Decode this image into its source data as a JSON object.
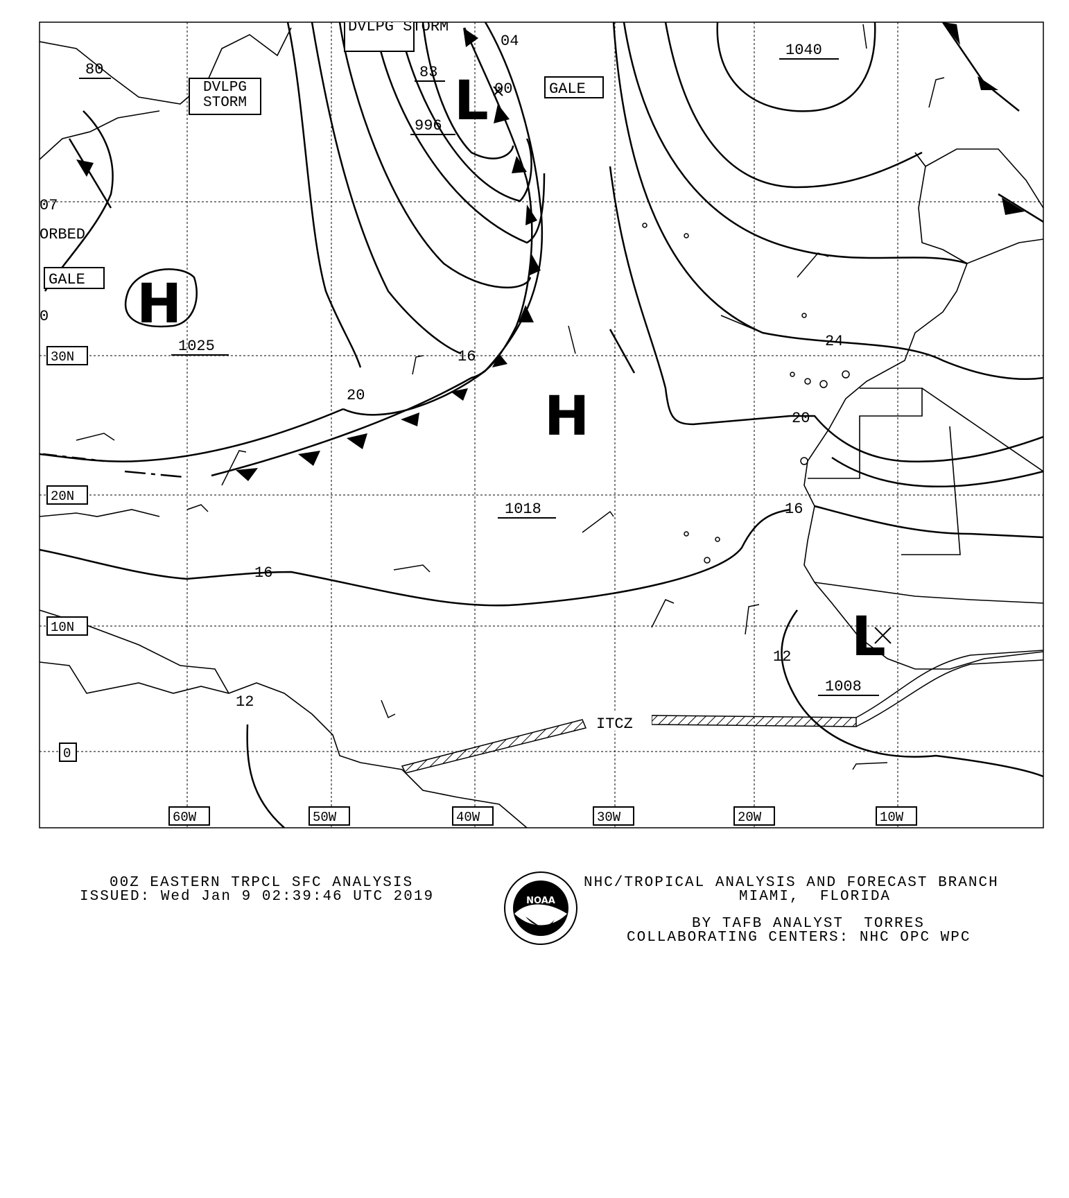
{
  "map": {
    "pressure_centers": [
      {
        "type": "H",
        "pressure": "1025"
      },
      {
        "type": "H",
        "pressure": "1018"
      },
      {
        "type": "L",
        "pressure": "996"
      },
      {
        "type": "L",
        "pressure": "1008"
      },
      {
        "type": "H",
        "pressure": "1040"
      }
    ],
    "isobar_labels": [
      "04",
      "00",
      "83",
      "80",
      "16",
      "20",
      "16",
      "24",
      "20",
      "16",
      "12",
      "12",
      "07",
      "0"
    ],
    "warnings": [
      "DVLPG STORM",
      "DVLPG STORM",
      "GALE",
      "GALE"
    ],
    "other_labels": [
      "ORBED",
      "ITCZ"
    ],
    "lat_labels": [
      "30N",
      "20N",
      "10N",
      "0",
      "30N"
    ],
    "lon_labels": [
      "60W",
      "50W",
      "40W",
      "30W",
      "20W",
      "10W"
    ],
    "colors": {
      "ink": "#000000",
      "background": "#ffffff"
    }
  },
  "footer": {
    "title": "00Z EASTERN TRPCL SFC ANALYSIS",
    "issued": "ISSUED: Wed Jan 9 02:39:46 UTC 2019",
    "branch": "NHC/TROPICAL ANALYSIS AND FORECAST BRANCH",
    "location": "MIAMI,  FLORIDA",
    "analyst": "BY TAFB ANALYST  TORRES",
    "centers": "COLLABORATING CENTERS: NHC OPC WPC",
    "logo_text": "NOAA"
  }
}
